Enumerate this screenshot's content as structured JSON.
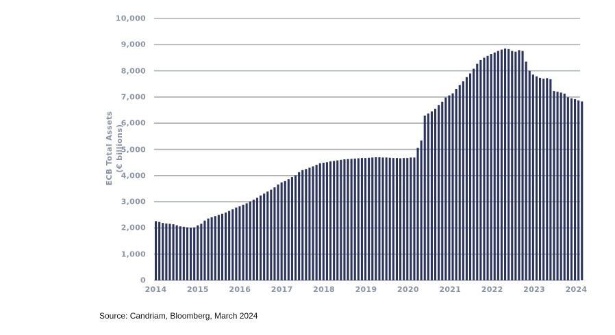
{
  "chart": {
    "y_axis_title_line1": "ECB Total Assets",
    "y_axis_title_line2": "(€ billions)",
    "source": "Source: Candriam, Bloomberg, March 2024"
  },
  "colors": {
    "bar": "#2b3363",
    "gridline": "#a9aeae",
    "axis_text": "#8b94a4",
    "source_text": "#111111",
    "background": "#ffffff"
  },
  "chart_data": {
    "type": "bar",
    "title": "",
    "xlabel": "",
    "ylabel": "ECB Total Assets (€ billions)",
    "unit": "EUR billions",
    "frequency": "monthly",
    "start_month": "2014-01",
    "end_month": "2024-03",
    "ylim": [
      0,
      10000
    ],
    "y_ticks": [
      0,
      1000,
      2000,
      3000,
      4000,
      5000,
      6000,
      7000,
      8000,
      9000,
      10000
    ],
    "x_tick_labels": [
      "2014",
      "2015",
      "2016",
      "2017",
      "2018",
      "2019",
      "2020",
      "2021",
      "2022",
      "2023",
      "2024"
    ],
    "grid": "horizontal",
    "legend_position": "none",
    "source": "Source: Candriam, Bloomberg, March 2024",
    "values": [
      2260,
      2230,
      2190,
      2170,
      2160,
      2140,
      2100,
      2060,
      2040,
      2020,
      2010,
      2020,
      2100,
      2160,
      2280,
      2360,
      2410,
      2450,
      2500,
      2540,
      2590,
      2650,
      2710,
      2780,
      2830,
      2880,
      2940,
      3010,
      3080,
      3150,
      3240,
      3310,
      3390,
      3460,
      3550,
      3660,
      3740,
      3790,
      3860,
      3940,
      4010,
      4130,
      4210,
      4250,
      4300,
      4350,
      4410,
      4470,
      4490,
      4510,
      4540,
      4560,
      4580,
      4600,
      4620,
      4630,
      4640,
      4650,
      4660,
      4670,
      4670,
      4680,
      4690,
      4700,
      4700,
      4690,
      4690,
      4680,
      4670,
      4670,
      4660,
      4670,
      4670,
      4690,
      4690,
      5060,
      5340,
      6290,
      6370,
      6450,
      6550,
      6690,
      6820,
      6980,
      7060,
      7140,
      7310,
      7460,
      7600,
      7760,
      7900,
      8080,
      8270,
      8410,
      8500,
      8570,
      8640,
      8700,
      8760,
      8810,
      8850,
      8830,
      8760,
      8730,
      8790,
      8760,
      8350,
      8000,
      7860,
      7790,
      7730,
      7700,
      7720,
      7680,
      7230,
      7200,
      7170,
      7130,
      6990,
      6950,
      6920,
      6870,
      6830
    ]
  }
}
